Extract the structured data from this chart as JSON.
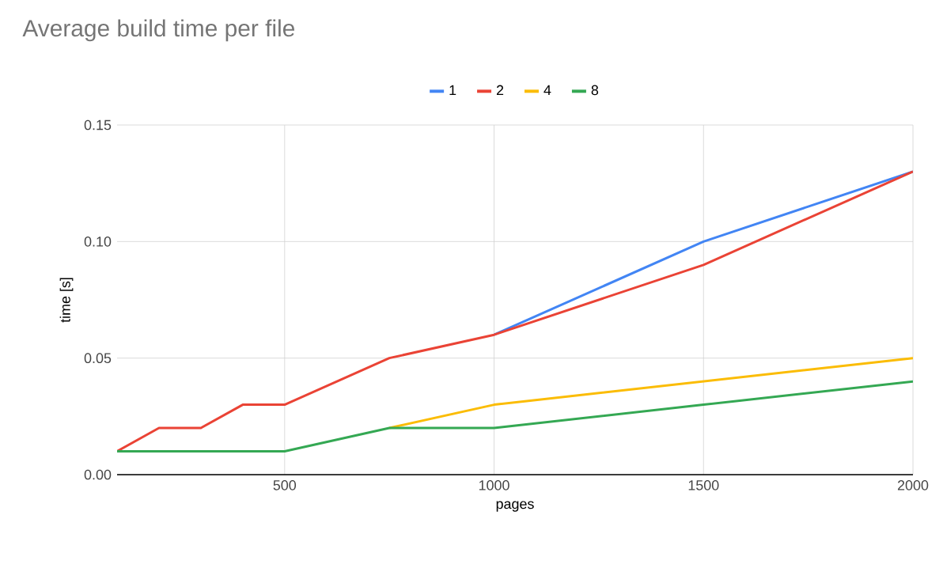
{
  "chart_data": {
    "type": "line",
    "title": "Average build time per file",
    "xlabel": "pages",
    "ylabel": "time [s]",
    "x": [
      100,
      200,
      300,
      400,
      500,
      750,
      1000,
      1500,
      2000
    ],
    "series": [
      {
        "name": "1",
        "color": "#4285f4",
        "values": [
          null,
          null,
          null,
          null,
          null,
          null,
          0.06,
          0.1,
          0.13
        ]
      },
      {
        "name": "2",
        "color": "#ea4335",
        "values": [
          0.01,
          0.02,
          0.02,
          0.03,
          0.03,
          0.05,
          0.06,
          0.09,
          0.13
        ]
      },
      {
        "name": "4",
        "color": "#fbbc04",
        "values": [
          null,
          null,
          null,
          null,
          null,
          0.02,
          0.03,
          0.04,
          0.05
        ]
      },
      {
        "name": "8",
        "color": "#34a853",
        "values": [
          0.01,
          0.01,
          0.01,
          0.01,
          0.01,
          0.02,
          0.02,
          0.03,
          0.04
        ]
      }
    ],
    "xlim": [
      100,
      2000
    ],
    "xticks": [
      500,
      1000,
      1500,
      2000
    ],
    "ylim": [
      0,
      0.15
    ],
    "yticks": [
      {
        "value": 0,
        "label": "0.00"
      },
      {
        "value": 0.05,
        "label": "0.05"
      },
      {
        "value": 0.1,
        "label": "0.10"
      },
      {
        "value": 0.15,
        "label": "0.15"
      }
    ],
    "grid": true,
    "legend": "top"
  }
}
